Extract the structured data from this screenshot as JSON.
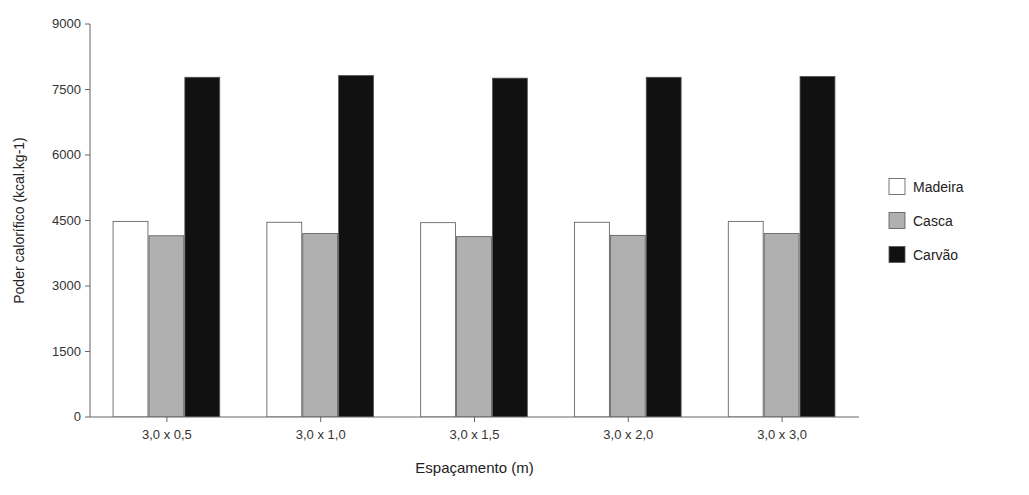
{
  "chart_data": {
    "type": "bar",
    "categories": [
      "3,0 x 0,5",
      "3,0 x 1,0",
      "3,0 x 1,5",
      "3,0 x 2,0",
      "3,0 x 3,0"
    ],
    "series": [
      {
        "name": "Madeira",
        "color": "#ffffff",
        "values": [
          4480,
          4460,
          4450,
          4460,
          4480
        ]
      },
      {
        "name": "Casca",
        "color": "#b0b0b0",
        "values": [
          4150,
          4200,
          4130,
          4160,
          4200
        ]
      },
      {
        "name": "Carvão",
        "color": "#111111",
        "values": [
          7780,
          7820,
          7760,
          7780,
          7800
        ]
      }
    ],
    "xlabel": "Espaçamento (m)",
    "ylabel": "Poder calorífico (kcal.kg-1)",
    "ylim": [
      0,
      9000
    ],
    "yticks": [
      0,
      1500,
      3000,
      4500,
      6000,
      7500,
      9000
    ],
    "grid": false,
    "legend": "right"
  }
}
